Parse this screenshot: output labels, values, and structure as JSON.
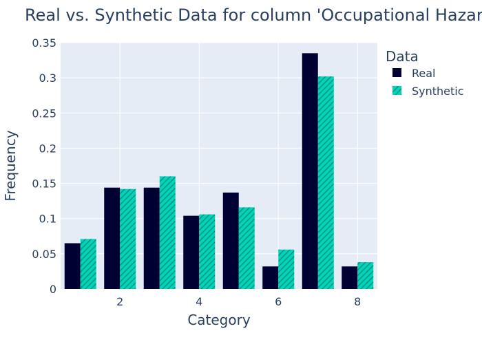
{
  "chart_data": {
    "type": "bar",
    "title": "Real vs. Synthetic Data for column 'Occupational Hazards'",
    "xlabel": "Category",
    "ylabel": "Frequency",
    "x": [
      1,
      2,
      3,
      4,
      5,
      6,
      7,
      8
    ],
    "x_ticks": [
      2,
      4,
      6,
      8
    ],
    "y_ticks": [
      0,
      0.05,
      0.1,
      0.15,
      0.2,
      0.25,
      0.3,
      0.35
    ],
    "y_tick_labels": [
      "0",
      "0.05",
      "0.1",
      "0.15",
      "0.2",
      "0.25",
      "0.3",
      "0.35"
    ],
    "ylim": [
      0,
      0.35
    ],
    "xlim": [
      0.5,
      8.5
    ],
    "grid": true,
    "legend": {
      "title": "Data",
      "placement": "right"
    },
    "series": [
      {
        "name": "Real",
        "color": "#000033",
        "pattern": "solid",
        "values": [
          0.065,
          0.144,
          0.144,
          0.104,
          0.137,
          0.032,
          0.335,
          0.032
        ]
      },
      {
        "name": "Synthetic",
        "color": "#00d4b8",
        "pattern": "diagonal-hatch",
        "values": [
          0.071,
          0.142,
          0.16,
          0.106,
          0.116,
          0.056,
          0.302,
          0.038
        ]
      }
    ]
  }
}
